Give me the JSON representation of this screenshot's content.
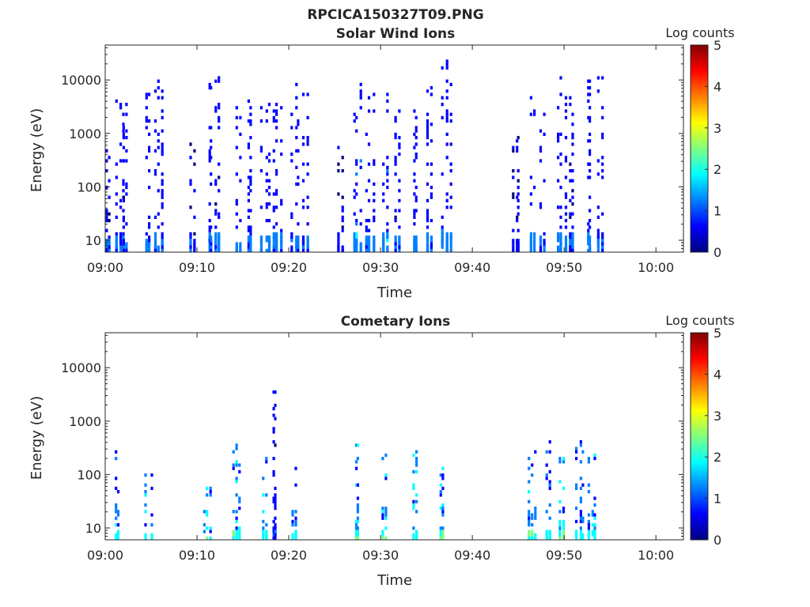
{
  "figure_title": "RPCICA150327T09.PNG",
  "colormap": [
    "#00007f",
    "#0000ff",
    "#007fff",
    "#00ffff",
    "#7fff7f",
    "#ffff00",
    "#ff7f00",
    "#ff0000",
    "#7f0000"
  ],
  "chart_data": [
    {
      "type": "heatmap",
      "title": "Solar Wind Ions",
      "xlabel": "Time",
      "ylabel": "Energy (eV)",
      "x_ticks": [
        "09:00",
        "09:10",
        "09:20",
        "09:30",
        "09:40",
        "09:50",
        "10:00"
      ],
      "y_ticks": [
        "10",
        "100",
        "1000",
        "10000"
      ],
      "y_scale": "log",
      "y_range": [
        6,
        45000
      ],
      "x_range_minutes": [
        0,
        63
      ],
      "colorbar": {
        "label": "Log counts",
        "range": [
          0,
          5
        ],
        "ticks": [
          "0",
          "1",
          "2",
          "3",
          "4",
          "5"
        ]
      },
      "bursts": [
        {
          "t": 0.3,
          "emin": 6,
          "emax": 1000,
          "level": 0.6
        },
        {
          "t": 1.8,
          "emin": 6,
          "emax": 4500,
          "level": 0.8
        },
        {
          "t": 2.3,
          "emin": 6,
          "emax": 5000,
          "level": 0.7
        },
        {
          "t": 4.8,
          "emin": 6,
          "emax": 6000,
          "level": 0.9
        },
        {
          "t": 6.0,
          "emin": 6,
          "emax": 11000,
          "level": 0.7
        },
        {
          "t": 9.6,
          "emin": 600,
          "emax": 900,
          "level": 0.5
        },
        {
          "t": 11.5,
          "emin": 6,
          "emax": 11000,
          "level": 0.8
        },
        {
          "t": 12.3,
          "emin": 6,
          "emax": 13000,
          "level": 0.7
        },
        {
          "t": 14.5,
          "emin": 6,
          "emax": 6000,
          "level": 0.9
        },
        {
          "t": 15.8,
          "emin": 6,
          "emax": 5000,
          "level": 0.8
        },
        {
          "t": 17.5,
          "emin": 6,
          "emax": 5000,
          "level": 0.9
        },
        {
          "t": 18.8,
          "emin": 6,
          "emax": 8000,
          "level": 0.8
        },
        {
          "t": 20.8,
          "emin": 6,
          "emax": 13000,
          "level": 0.8
        },
        {
          "t": 22.0,
          "emin": 6,
          "emax": 6000,
          "level": 0.7
        },
        {
          "t": 25.8,
          "emin": 6,
          "emax": 600,
          "level": 0.5
        },
        {
          "t": 27.5,
          "emin": 6,
          "emax": 9000,
          "level": 1.0
        },
        {
          "t": 28.8,
          "emin": 6,
          "emax": 6000,
          "level": 0.8
        },
        {
          "t": 30.5,
          "emin": 6,
          "emax": 9000,
          "level": 1.0
        },
        {
          "t": 31.8,
          "emin": 6,
          "emax": 3000,
          "level": 0.7
        },
        {
          "t": 33.8,
          "emin": 6,
          "emax": 6000,
          "level": 0.9
        },
        {
          "t": 35.3,
          "emin": 6,
          "emax": 9000,
          "level": 0.8
        },
        {
          "t": 37.3,
          "emin": 6,
          "emax": 27000,
          "level": 0.9
        },
        {
          "t": 44.8,
          "emin": 300,
          "emax": 900,
          "level": 0.5
        },
        {
          "t": 46.5,
          "emin": 6,
          "emax": 8000,
          "level": 0.9
        },
        {
          "t": 47.8,
          "emin": 6,
          "emax": 3000,
          "level": 0.8
        },
        {
          "t": 49.8,
          "emin": 6,
          "emax": 14000,
          "level": 0.9
        },
        {
          "t": 50.8,
          "emin": 6,
          "emax": 10000,
          "level": 0.7
        },
        {
          "t": 52.8,
          "emin": 6,
          "emax": 13000,
          "level": 0.9
        },
        {
          "t": 54.0,
          "emin": 6,
          "emax": 13000,
          "level": 0.8
        }
      ]
    },
    {
      "type": "heatmap",
      "title": "Cometary Ions",
      "xlabel": "Time",
      "ylabel": "Energy (eV)",
      "x_ticks": [
        "09:00",
        "09:10",
        "09:20",
        "09:30",
        "09:40",
        "09:50",
        "10:00"
      ],
      "y_ticks": [
        "10",
        "100",
        "1000",
        "10000"
      ],
      "y_scale": "log",
      "y_range": [
        6,
        45000
      ],
      "x_range_minutes": [
        0,
        63
      ],
      "colorbar": {
        "label": "Log counts",
        "range": [
          0,
          5
        ],
        "ticks": [
          "0",
          "1",
          "2",
          "3",
          "4",
          "5"
        ]
      },
      "bursts": [
        {
          "t": 1.3,
          "emin": 6,
          "emax": 500,
          "level": 1.6
        },
        {
          "t": 4.8,
          "emin": 6,
          "emax": 200,
          "level": 1.8
        },
        {
          "t": 11.3,
          "emin": 6,
          "emax": 60,
          "level": 1.9
        },
        {
          "t": 14.3,
          "emin": 6,
          "emax": 400,
          "level": 1.8
        },
        {
          "t": 17.5,
          "emin": 6,
          "emax": 400,
          "level": 1.9
        },
        {
          "t": 18.5,
          "emin": 300,
          "emax": 4000,
          "level": 0.7
        },
        {
          "t": 20.8,
          "emin": 6,
          "emax": 300,
          "level": 1.6
        },
        {
          "t": 27.5,
          "emin": 6,
          "emax": 500,
          "level": 1.7
        },
        {
          "t": 30.5,
          "emin": 6,
          "emax": 400,
          "level": 1.9
        },
        {
          "t": 33.8,
          "emin": 6,
          "emax": 300,
          "level": 1.8
        },
        {
          "t": 36.8,
          "emin": 6,
          "emax": 400,
          "level": 1.9
        },
        {
          "t": 46.5,
          "emin": 6,
          "emax": 400,
          "level": 1.7
        },
        {
          "t": 48.3,
          "emin": 50,
          "emax": 500,
          "level": 1.4
        },
        {
          "t": 49.8,
          "emin": 6,
          "emax": 300,
          "level": 2.0
        },
        {
          "t": 51.8,
          "emin": 30,
          "emax": 500,
          "level": 1.5
        },
        {
          "t": 53.0,
          "emin": 6,
          "emax": 300,
          "level": 1.8
        }
      ]
    }
  ]
}
